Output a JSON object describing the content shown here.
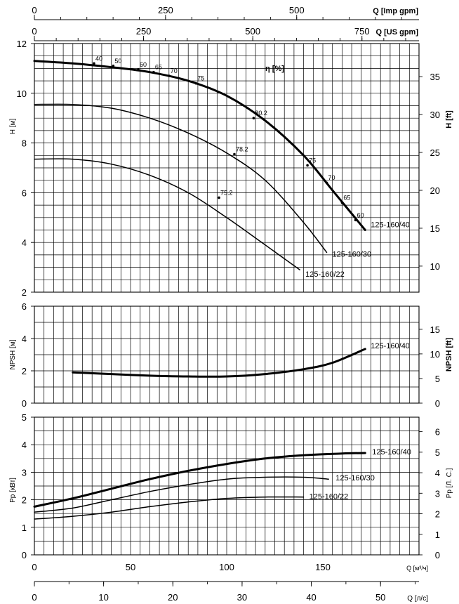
{
  "chart_data": [
    {
      "type": "line",
      "panel": "head",
      "ylabel": "H [м]",
      "y2label": "H [ft]",
      "ylim": [
        2,
        12
      ],
      "y_ticks": [
        2,
        4,
        6,
        8,
        10,
        12
      ],
      "y2_ticks": [
        10,
        15,
        20,
        25,
        30,
        35
      ],
      "xlim": [
        0,
        200
      ],
      "efficiency_label": "η [%]",
      "series": [
        {
          "name": "125-160/40",
          "weight": 3,
          "x": [
            0,
            20,
            40,
            60,
            80,
            100,
            120,
            140,
            155,
            172
          ],
          "y": [
            11.3,
            11.2,
            11.05,
            10.85,
            10.5,
            9.9,
            8.9,
            7.5,
            6.1,
            4.5
          ]
        },
        {
          "name": "125-160/30",
          "weight": 1.5,
          "x": [
            0,
            20,
            40,
            60,
            80,
            100,
            120,
            140,
            152
          ],
          "y": [
            9.55,
            9.55,
            9.4,
            9.0,
            8.4,
            7.6,
            6.5,
            4.8,
            3.6
          ]
        },
        {
          "name": "125-160/22",
          "weight": 1.5,
          "x": [
            0,
            20,
            40,
            60,
            80,
            100,
            120,
            138
          ],
          "y": [
            7.35,
            7.35,
            7.15,
            6.7,
            6.0,
            5.0,
            3.9,
            2.9
          ]
        }
      ],
      "efficiency_values": [
        {
          "label": "40",
          "x": 31,
          "y": 11.2
        },
        {
          "label": "50",
          "x": 41,
          "y": 11.1
        },
        {
          "label": "60",
          "x": 54,
          "y": 10.95
        },
        {
          "label": "65",
          "x": 62,
          "y": 10.85
        },
        {
          "label": "70",
          "x": 70,
          "y": 10.7
        },
        {
          "label": "75",
          "x": 84,
          "y": 10.4
        },
        {
          "label": "80.2",
          "x": 114,
          "y": 9.0
        },
        {
          "label": "78.2",
          "x": 104,
          "y": 7.55
        },
        {
          "label": "75.2",
          "x": 96,
          "y": 5.8
        },
        {
          "label": "75",
          "x": 142,
          "y": 7.1
        },
        {
          "label": "70",
          "x": 152,
          "y": 6.4
        },
        {
          "label": "65",
          "x": 160,
          "y": 5.6
        },
        {
          "label": "60",
          "x": 167,
          "y": 4.9
        }
      ]
    },
    {
      "type": "line",
      "panel": "npsh",
      "ylabel": "NPSH [м]",
      "y2label": "NPSH [ft]",
      "ylim": [
        0,
        6
      ],
      "y_ticks": [
        0,
        2,
        4,
        6
      ],
      "y2_ticks": [
        0,
        5,
        10,
        15
      ],
      "xlim": [
        0,
        200
      ],
      "series": [
        {
          "name": "125-160/40",
          "x": [
            20,
            40,
            60,
            80,
            100,
            120,
            140,
            155,
            172
          ],
          "y": [
            1.9,
            1.8,
            1.7,
            1.65,
            1.65,
            1.8,
            2.1,
            2.5,
            3.35
          ]
        }
      ]
    },
    {
      "type": "line",
      "panel": "power",
      "ylabel": "Pp [кВт]",
      "y2label": "Pp [Л. С.]",
      "ylim": [
        0,
        5
      ],
      "y_ticks": [
        0,
        1,
        2,
        3,
        4,
        5
      ],
      "y2_ticks": [
        0,
        1,
        2,
        3,
        4,
        5,
        6
      ],
      "xlim": [
        0,
        200
      ],
      "xlabel": "Q [м³/ч]",
      "x_ticks": [
        0,
        50,
        100,
        150
      ],
      "series": [
        {
          "name": "125-160/40",
          "weight": 3,
          "x": [
            0,
            20,
            40,
            60,
            80,
            100,
            120,
            140,
            160,
            172
          ],
          "y": [
            1.75,
            2.05,
            2.4,
            2.75,
            3.05,
            3.3,
            3.5,
            3.62,
            3.68,
            3.7
          ]
        },
        {
          "name": "125-160/30",
          "weight": 1.5,
          "x": [
            0,
            20,
            40,
            60,
            80,
            100,
            120,
            140,
            153
          ],
          "y": [
            1.55,
            1.7,
            2.0,
            2.3,
            2.55,
            2.75,
            2.82,
            2.82,
            2.75
          ]
        },
        {
          "name": "125-160/22",
          "weight": 1.5,
          "x": [
            0,
            20,
            40,
            60,
            80,
            100,
            120,
            140
          ],
          "y": [
            1.3,
            1.4,
            1.55,
            1.75,
            1.92,
            2.05,
            2.1,
            2.1
          ]
        }
      ]
    }
  ],
  "axes": {
    "imp_gpm": {
      "label": "Q [Imp gpm]",
      "ticks": [
        0,
        250,
        500
      ]
    },
    "us_gpm": {
      "label": "Q [US gpm]",
      "ticks": [
        0,
        250,
        500,
        750
      ]
    },
    "ls": {
      "label": "Q [л/с]",
      "ticks": [
        0,
        10,
        20,
        30,
        40,
        50
      ]
    }
  }
}
